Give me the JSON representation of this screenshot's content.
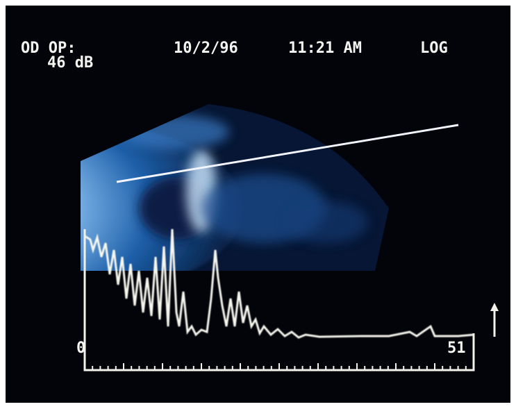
{
  "header": {
    "eye": "OD OP:",
    "gain": "46 dB",
    "date": "10/2/96",
    "time": "11:21 AM",
    "mode": "LOG"
  },
  "scale": {
    "start": "0",
    "end": "51"
  }
}
